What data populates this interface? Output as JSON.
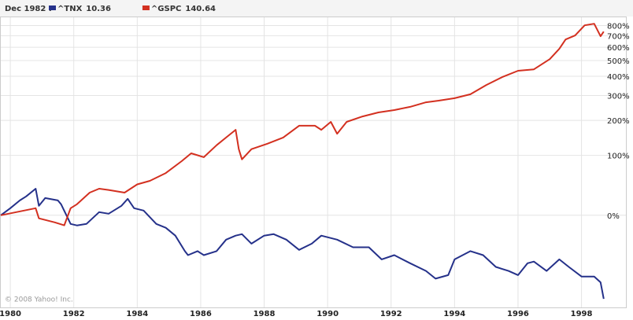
{
  "chart_data": {
    "type": "line",
    "hover_date": "Dec 1982 :",
    "copyright": "© 2008 Yahoo! Inc.",
    "y_scale": "log-percent",
    "grid": true,
    "xlim": [
      1979.7,
      1999.4
    ],
    "xticks": [
      1980,
      1982,
      1984,
      1986,
      1988,
      1990,
      1992,
      1994,
      1996,
      1998
    ],
    "ylim": [
      -64,
      890
    ],
    "yticks": [
      {
        "value": 0,
        "label": "0%"
      },
      {
        "value": 100,
        "label": "100%"
      },
      {
        "value": 200,
        "label": "200%"
      },
      {
        "value": 300,
        "label": "300%"
      },
      {
        "value": 400,
        "label": "400%"
      },
      {
        "value": 500,
        "label": "500%"
      },
      {
        "value": 600,
        "label": "600%"
      },
      {
        "value": 700,
        "label": "700%"
      },
      {
        "value": 800,
        "label": "800%"
      }
    ],
    "series": [
      {
        "name": "^TNX",
        "hover_value": "10.36",
        "color": "#25318a",
        "x": [
          1979.7,
          1980.0,
          1980.3,
          1980.5,
          1980.8,
          1980.9,
          1981.1,
          1981.5,
          1981.6,
          1981.9,
          1982.1,
          1982.4,
          1982.8,
          1983.1,
          1983.5,
          1983.7,
          1983.9,
          1984.2,
          1984.6,
          1984.9,
          1985.2,
          1985.5,
          1985.6,
          1985.9,
          1986.1,
          1986.5,
          1986.8,
          1987.1,
          1987.3,
          1987.6,
          1988.0,
          1988.3,
          1988.7,
          1989.1,
          1989.5,
          1989.8,
          1990.3,
          1990.8,
          1991.3,
          1991.7,
          1992.1,
          1992.6,
          1993.1,
          1993.4,
          1993.8,
          1994.0,
          1994.5,
          1994.9,
          1995.3,
          1995.7,
          1996.0,
          1996.3,
          1996.5,
          1996.9,
          1997.3,
          1997.6,
          1998.0,
          1998.4,
          1998.6,
          1998.7
        ],
        "values": [
          0,
          8.5,
          18.8,
          24.4,
          36,
          11.5,
          22.1,
          18.8,
          13.6,
          -9.5,
          -11.1,
          -9.5,
          3.7,
          1.8,
          11.5,
          21,
          8.5,
          5.6,
          -9.5,
          -13.5,
          -21,
          -34,
          -37,
          -34,
          -37,
          -34,
          -24.6,
          -21,
          -19.6,
          -28,
          -21,
          -19.6,
          -24.6,
          -33,
          -28,
          -21,
          -24.6,
          -31,
          -31,
          -40,
          -37,
          -42.6,
          -47.5,
          -52,
          -50,
          -40,
          -34,
          -37,
          -45,
          -47.5,
          -50,
          -42.6,
          -41.5,
          -47.5,
          -40,
          -45,
          -50.8,
          -50.8,
          -54,
          -62
        ]
      },
      {
        "name": "^GSPC",
        "hover_value": "140.64",
        "color": "#d33020",
        "x": [
          1979.7,
          1980.8,
          1980.9,
          1981.4,
          1981.7,
          1981.9,
          1982.1,
          1982.5,
          1982.8,
          1983.1,
          1983.6,
          1984.0,
          1984.4,
          1984.9,
          1985.4,
          1985.7,
          1986.1,
          1986.5,
          1986.8,
          1987.1,
          1987.2,
          1987.3,
          1987.6,
          1988.1,
          1988.6,
          1989.1,
          1989.6,
          1989.8,
          1990.1,
          1990.3,
          1990.6,
          1991.1,
          1991.6,
          1992.1,
          1992.6,
          1993.1,
          1993.5,
          1994.0,
          1994.5,
          1995.0,
          1995.5,
          1996.0,
          1996.5,
          1997.0,
          1997.3,
          1997.5,
          1997.8,
          1998.1,
          1998.4,
          1998.6,
          1998.7
        ],
        "values": [
          0,
          8.5,
          -3.5,
          -7.9,
          -11,
          8.5,
          13.6,
          30,
          36,
          34,
          30,
          43,
          49,
          63,
          87,
          105,
          96,
          125,
          146,
          169,
          115,
          91,
          115,
          129,
          146,
          182,
          182,
          169,
          195,
          157,
          195,
          214,
          229,
          238,
          251,
          270,
          277,
          288,
          306,
          352,
          395,
          433,
          442,
          510,
          587,
          666,
          702,
          802,
          819,
          695,
          739
        ]
      }
    ]
  }
}
